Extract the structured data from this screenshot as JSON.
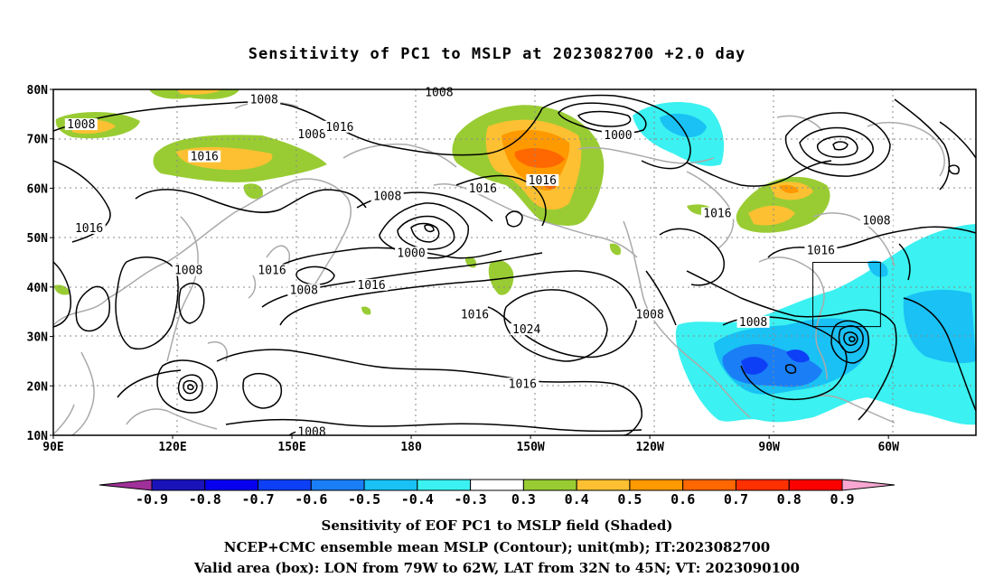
{
  "title": "Sensitivity of PC1 to MSLP at 2023082700 +2.0 day",
  "map": {
    "lat_labels": [
      "80N",
      "70N",
      "60N",
      "50N",
      "40N",
      "30N",
      "20N",
      "10N"
    ],
    "lon_labels": [
      "90E",
      "120E",
      "150E",
      "180",
      "150W",
      "120W",
      "90W",
      "60W"
    ],
    "contour_unit": "mb",
    "contour_labels": [
      {
        "text": "1008",
        "lon": 97,
        "lat": 72.5
      },
      {
        "text": "1016",
        "lon": 128,
        "lat": 66
      },
      {
        "text": "1008",
        "lon": 155,
        "lat": 70.5
      },
      {
        "text": "1016",
        "lon": 162,
        "lat": 72
      },
      {
        "text": "1008",
        "lon": 143,
        "lat": 77.5
      },
      {
        "text": "1008",
        "lon": 187,
        "lat": 79
      },
      {
        "text": "1000",
        "lon": 232,
        "lat": 70.3
      },
      {
        "text": "1016",
        "lon": 198,
        "lat": 59.5
      },
      {
        "text": "1016",
        "lon": 213,
        "lat": 61.2
      },
      {
        "text": "1008",
        "lon": 174,
        "lat": 58
      },
      {
        "text": "1000",
        "lon": 180,
        "lat": 46.5
      },
      {
        "text": "1016",
        "lon": 99,
        "lat": 51.5
      },
      {
        "text": "1008",
        "lon": 124,
        "lat": 43
      },
      {
        "text": "1016",
        "lon": 145,
        "lat": 43
      },
      {
        "text": "1008",
        "lon": 153,
        "lat": 39
      },
      {
        "text": "1016",
        "lon": 170,
        "lat": 40
      },
      {
        "text": "1016",
        "lon": 196,
        "lat": 34
      },
      {
        "text": "1024",
        "lon": 209,
        "lat": 31
      },
      {
        "text": "1008",
        "lon": 240,
        "lat": 34
      },
      {
        "text": "1016",
        "lon": 257,
        "lat": 54.5
      },
      {
        "text": "1016",
        "lon": 283,
        "lat": 47
      },
      {
        "text": "1008",
        "lon": 297,
        "lat": 53
      },
      {
        "text": "1008",
        "lon": 266,
        "lat": 32.5
      },
      {
        "text": "1016",
        "lon": 208,
        "lat": 20
      },
      {
        "text": "1008",
        "lon": 155,
        "lat": 10.3
      }
    ],
    "valid_box": {
      "lon_from": 281,
      "lon_to": 298,
      "lat_from": 32,
      "lat_to": 45
    }
  },
  "colorbar": {
    "labels": [
      "-0.9",
      "-0.8",
      "-0.7",
      "-0.6",
      "-0.5",
      "-0.4",
      "-0.3",
      "0.3",
      "0.4",
      "0.5",
      "0.6",
      "0.7",
      "0.8",
      "0.9"
    ],
    "colors": [
      "#a0309a",
      "#1a13b9",
      "#0700ee",
      "#0d3ff6",
      "#1a7ef6",
      "#19c1f5",
      "#3bf1f1",
      "#ffffff",
      "#99cc33",
      "#fcc032",
      "#ff9900",
      "#ff6700",
      "#ff3000",
      "#ff0000",
      "#f7a7d2"
    ]
  },
  "captions": {
    "line1": "Sensitivity of EOF PC1 to MSLP field (Shaded)",
    "line2": "NCEP+CMC ensemble mean MSLP (Contour); unit(mb); IT:2023082700",
    "line3": "Valid area (box): LON from 79W to 62W, LAT from 32N to 45N; VT: 2023090100"
  }
}
